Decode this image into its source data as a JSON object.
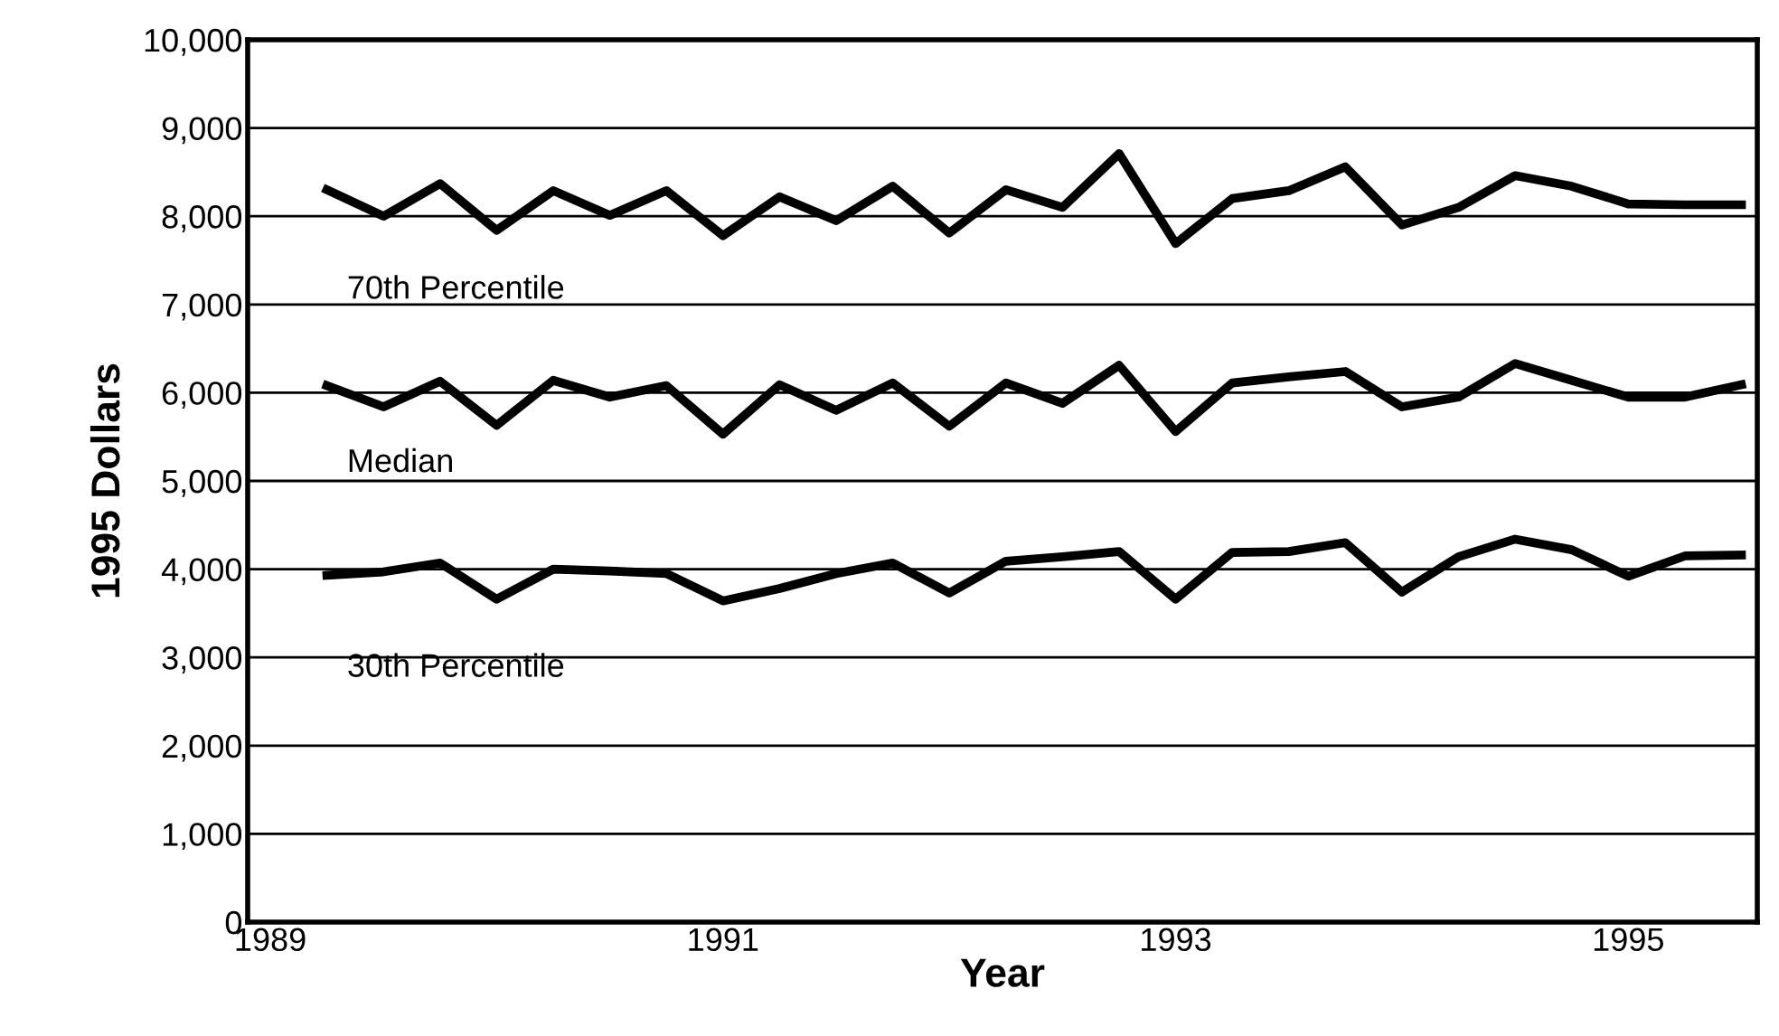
{
  "chart_data": {
    "type": "line",
    "xlabel": "Year",
    "ylabel": "1995 Dollars",
    "x": [
      1989.25,
      1989.5,
      1989.75,
      1990,
      1990.25,
      1990.5,
      1990.75,
      1991,
      1991.25,
      1991.5,
      1991.75,
      1992,
      1992.25,
      1992.5,
      1992.75,
      1993,
      1993.25,
      1993.5,
      1993.75,
      1994,
      1994.25,
      1994.5,
      1994.75,
      1995,
      1995.25,
      1995.5
    ],
    "series": [
      {
        "name": "70th Percentile",
        "color": "#000000",
        "values": [
          8300,
          8000,
          8370,
          7840,
          8290,
          8010,
          8290,
          7780,
          8220,
          7950,
          8340,
          7810,
          8300,
          8100,
          8710,
          7690,
          8200,
          8290,
          8560,
          7900,
          8100,
          8460,
          8340,
          8140,
          8130,
          8130
        ]
      },
      {
        "name": "Median",
        "color": "#000000",
        "values": [
          6080,
          5840,
          6130,
          5630,
          6140,
          5950,
          6080,
          5530,
          6090,
          5800,
          6110,
          5620,
          6110,
          5880,
          6310,
          5560,
          6110,
          6180,
          6240,
          5840,
          5950,
          6330,
          6140,
          5950,
          5950,
          6090
        ]
      },
      {
        "name": "30th Percentile",
        "color": "#000000",
        "values": [
          3930,
          3970,
          4070,
          3660,
          4000,
          3980,
          3950,
          3640,
          3780,
          3950,
          4070,
          3730,
          4090,
          4140,
          4200,
          3660,
          4190,
          4200,
          4300,
          3740,
          4140,
          4340,
          4220,
          3920,
          4150,
          4160
        ]
      }
    ],
    "xlim": [
      1988.9,
      1995.57
    ],
    "xticks": [
      1989,
      1991,
      1993,
      1995
    ],
    "ylim": [
      0,
      10000
    ],
    "yticks": [
      {
        "value": 0,
        "label": "0"
      },
      {
        "value": 1000,
        "label": "1,000"
      },
      {
        "value": 2000,
        "label": "2,000"
      },
      {
        "value": 3000,
        "label": "3,000"
      },
      {
        "value": 4000,
        "label": "4,000"
      },
      {
        "value": 5000,
        "label": "5,000"
      },
      {
        "value": 6000,
        "label": "6,000"
      },
      {
        "value": 7000,
        "label": "7,000"
      },
      {
        "value": 8000,
        "label": "8,000"
      },
      {
        "value": 9000,
        "label": "9,000"
      },
      {
        "value": 10000,
        "label": "10,000"
      }
    ],
    "grid": "y",
    "marker": "none",
    "line_style": "solid"
  }
}
